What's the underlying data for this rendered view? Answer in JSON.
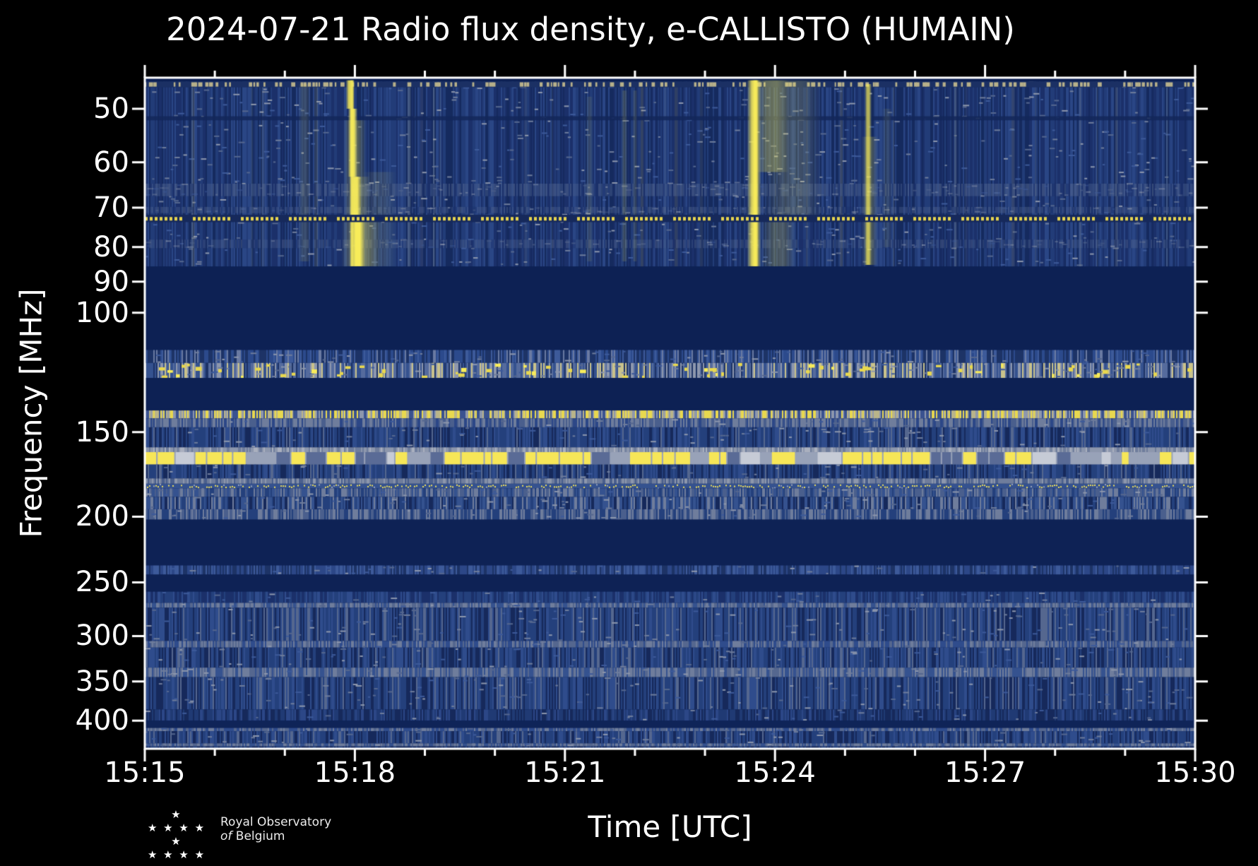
{
  "title": "2024-07-21 Radio flux density, e-CALLISTO (HUMAIN)",
  "logo": {
    "line1": "Royal Observatory",
    "line2_of": "of",
    "line2_rest": "Belgium",
    "stars_top": "★",
    "stars_mid": "★ ★ ★ ★ ★",
    "stars_bottom": "★ ★ ★ ★"
  },
  "chart_data": {
    "type": "heatmap",
    "title": "2024-07-21 Radio flux density, e-CALLISTO (HUMAIN)",
    "xlabel": "Time [UTC]",
    "ylabel": "Frequency [MHz]",
    "x_range_utc": [
      "15:15",
      "15:30"
    ],
    "x_ticks_major": [
      "15:15",
      "15:18",
      "15:21",
      "15:24",
      "15:27",
      "15:30"
    ],
    "x_major_interval_min": 3,
    "x_minor_interval_min": 1,
    "y_scale": "log",
    "y_axis_inverted": true,
    "y_range_mhz": [
      45,
      440
    ],
    "y_ticks_mhz": [
      50,
      60,
      70,
      80,
      90,
      100,
      150,
      200,
      250,
      300,
      350,
      400
    ],
    "grid": false,
    "legend": "none",
    "colors": {
      "figure_background": "#000000",
      "axis": "#ffffff",
      "blank_band": "#0d2154",
      "noise_base": "#1d336b",
      "burst_yellow": "#f8ec5a"
    },
    "rfi_dash_line": {
      "f0": 71.7,
      "f1": 73.5,
      "bg": "#16295b",
      "c": "#e6d44f"
    },
    "bands": [
      {
        "f0": 45.0,
        "f1": 85.5,
        "style": "noise",
        "pal": [
          [
            "#1b306a",
            0.32
          ],
          [
            "#223c78",
            0.28
          ],
          [
            "#152a5e",
            0.22
          ],
          [
            "#2a4685",
            0.18
          ]
        ],
        "hspeck": 0.05,
        "ytint": 0.05
      },
      {
        "f0": 45.0,
        "f1": 45.6,
        "style": "solid",
        "c": "#0d2154"
      },
      {
        "f0": 45.6,
        "f1": 46.5,
        "style": "hdash",
        "bg": "#1b3064",
        "c": "#b7b08a",
        "den": 0.5
      },
      {
        "f0": 51.3,
        "f1": 52.0,
        "style": "solid",
        "c": "#132759",
        "alpha": 0.85
      },
      {
        "f0": 64.5,
        "f1": 67.3,
        "style": "noise",
        "alpha": 0.5,
        "pal": [
          [
            "#44598a",
            0.45
          ],
          [
            "#55678f",
            0.25
          ],
          [
            "#1b306a",
            0.3
          ]
        ],
        "hspeck": 0.1
      },
      {
        "f0": 69.8,
        "f1": 71.3,
        "style": "noise",
        "alpha": 0.45,
        "pal": [
          [
            "#44598a",
            0.5
          ],
          [
            "#55678f",
            0.2
          ],
          [
            "#1b306a",
            0.3
          ]
        ],
        "hspeck": 0.08
      },
      {
        "f0": 78.0,
        "f1": 80.3,
        "style": "noise",
        "alpha": 0.4,
        "pal": [
          [
            "#44598a",
            0.4
          ],
          [
            "#55678f",
            0.25
          ],
          [
            "#1b306a",
            0.35
          ]
        ],
        "hspeck": 0.08
      },
      {
        "f0": 85.5,
        "f1": 113.5,
        "style": "solid",
        "c": "#0d2154"
      },
      {
        "f0": 113.5,
        "f1": 118.6,
        "style": "noise",
        "pal": [
          [
            "#1d3366",
            0.4
          ],
          [
            "#2c4a8c",
            0.28
          ],
          [
            "#3d5a9a",
            0.18
          ],
          [
            "#6a7aa2",
            0.14
          ]
        ],
        "hspeck": 0.06
      },
      {
        "f0": 118.6,
        "f1": 124.8,
        "style": "noise",
        "pal": [
          [
            "#35528f",
            0.28
          ],
          [
            "#556b9d",
            0.22
          ],
          [
            "#8d97ad",
            0.18
          ],
          [
            "#1d3366",
            0.14
          ],
          [
            "#c9c28b",
            0.18
          ]
        ],
        "ydash": 0.16,
        "hspeck": 0.08
      },
      {
        "f0": 124.8,
        "f1": 139.4,
        "style": "solid",
        "c": "#0d2154"
      },
      {
        "f0": 139.4,
        "f1": 143.2,
        "style": "noise",
        "pal": [
          [
            "#3a5290",
            0.26
          ],
          [
            "#8d97ad",
            0.2
          ],
          [
            "#e8d84f",
            0.3
          ],
          [
            "#b9b489",
            0.24
          ]
        ]
      },
      {
        "f0": 143.2,
        "f1": 147.6,
        "style": "noise",
        "pal": [
          [
            "#6f7d9c",
            0.4
          ],
          [
            "#4a5f8d",
            0.33
          ],
          [
            "#2c4787",
            0.27
          ]
        ],
        "hspeck": 0.05
      },
      {
        "f0": 147.6,
        "f1": 158.0,
        "style": "noise",
        "pal": [
          [
            "#24407c",
            0.4
          ],
          [
            "#16295b",
            0.25
          ],
          [
            "#2f4c8c",
            0.25
          ],
          [
            "#55678f",
            0.1
          ]
        ],
        "hspeck": 0.05
      },
      {
        "f0": 158.0,
        "f1": 160.6,
        "style": "noise",
        "pal": [
          [
            "#8d97ad",
            0.5
          ],
          [
            "#6f7d9c",
            0.3
          ],
          [
            "#aab0bf",
            0.2
          ]
        ]
      },
      {
        "f0": 160.6,
        "f1": 167.5,
        "style": "segments",
        "bg": "#98a2b8",
        "c": "#f6e658",
        "cov": 0.5
      },
      {
        "f0": 167.5,
        "f1": 175.6,
        "style": "noise",
        "pal": [
          [
            "#24407c",
            0.38
          ],
          [
            "#16295b",
            0.3
          ],
          [
            "#2f4c8c",
            0.22
          ],
          [
            "#55678f",
            0.1
          ]
        ],
        "hspeck": 0.05
      },
      {
        "f0": 175.6,
        "f1": 178.8,
        "style": "noise",
        "pal": [
          [
            "#6f7d9c",
            0.45
          ],
          [
            "#8d97ad",
            0.25
          ],
          [
            "#4a5f8d",
            0.3
          ]
        ]
      },
      {
        "f0": 178.8,
        "f1": 181.6,
        "style": "dots",
        "bg": "#35528f",
        "c": "#f0e05a",
        "den": 0.5
      },
      {
        "f0": 181.6,
        "f1": 187.0,
        "style": "noise",
        "pal": [
          [
            "#4a5f8d",
            0.3
          ],
          [
            "#6f7d9c",
            0.25
          ],
          [
            "#35528f",
            0.25
          ],
          [
            "#24407c",
            0.2
          ]
        ],
        "hspeck": 0.06
      },
      {
        "f0": 187.0,
        "f1": 195.0,
        "style": "noise",
        "pal": [
          [
            "#35528f",
            0.3
          ],
          [
            "#24407c",
            0.3
          ],
          [
            "#6f7d9c",
            0.2
          ],
          [
            "#16295b",
            0.2
          ]
        ],
        "hspeck": 0.06
      },
      {
        "f0": 195.0,
        "f1": 202.0,
        "style": "noise",
        "pal": [
          [
            "#6f7d9c",
            0.3
          ],
          [
            "#4a5f8d",
            0.3
          ],
          [
            "#24407c",
            0.4
          ]
        ],
        "hspeck": 0.05
      },
      {
        "f0": 202.0,
        "f1": 236.0,
        "style": "solid",
        "c": "#0e2255"
      },
      {
        "f0": 236.0,
        "f1": 243.5,
        "style": "noise",
        "pal": [
          [
            "#2c4787",
            0.42
          ],
          [
            "#3d5a9a",
            0.28
          ],
          [
            "#1d3366",
            0.3
          ]
        ],
        "hspeck": 0.05
      },
      {
        "f0": 243.5,
        "f1": 258.0,
        "style": "solid",
        "c": "#0e2255"
      },
      {
        "f0": 258.0,
        "f1": 268.0,
        "style": "noise",
        "pal": [
          [
            "#24407c",
            0.4
          ],
          [
            "#1b306a",
            0.35
          ],
          [
            "#2f4c8c",
            0.25
          ]
        ],
        "hspeck": 0.04
      },
      {
        "f0": 268.0,
        "f1": 272.5,
        "style": "noise",
        "pal": [
          [
            "#6f7d9c",
            0.35
          ],
          [
            "#55678f",
            0.3
          ],
          [
            "#35528f",
            0.35
          ]
        ],
        "hspeck": 0.05
      },
      {
        "f0": 272.5,
        "f1": 305.0,
        "style": "noise",
        "pal": [
          [
            "#24407c",
            0.34
          ],
          [
            "#16295b",
            0.26
          ],
          [
            "#2f4c8c",
            0.25
          ],
          [
            "#55678f",
            0.15
          ]
        ],
        "hspeck": 0.05
      },
      {
        "f0": 305.0,
        "f1": 312.0,
        "style": "noise",
        "pal": [
          [
            "#55678f",
            0.35
          ],
          [
            "#6f7d9c",
            0.25
          ],
          [
            "#2f4c8c",
            0.4
          ]
        ],
        "hspeck": 0.05
      },
      {
        "f0": 312.0,
        "f1": 334.0,
        "style": "noise",
        "pal": [
          [
            "#24407c",
            0.38
          ],
          [
            "#16295b",
            0.27
          ],
          [
            "#2f4c8c",
            0.25
          ],
          [
            "#55678f",
            0.1
          ]
        ],
        "hspeck": 0.05
      },
      {
        "f0": 334.0,
        "f1": 345.0,
        "style": "noise",
        "pal": [
          [
            "#6f7d9c",
            0.4
          ],
          [
            "#55678f",
            0.25
          ],
          [
            "#35528f",
            0.35
          ]
        ],
        "hspeck": 0.06
      },
      {
        "f0": 345.0,
        "f1": 385.0,
        "style": "noise",
        "pal": [
          [
            "#24407c",
            0.36
          ],
          [
            "#16295b",
            0.28
          ],
          [
            "#2f4c8c",
            0.24
          ],
          [
            "#55678f",
            0.12
          ]
        ],
        "hspeck": 0.05
      },
      {
        "f0": 385.0,
        "f1": 400.0,
        "style": "noise",
        "pal": [
          [
            "#203a74",
            0.4
          ],
          [
            "#16295b",
            0.35
          ],
          [
            "#2c4787",
            0.25
          ]
        ],
        "hspeck": 0.04
      },
      {
        "f0": 400.0,
        "f1": 410.0,
        "style": "solid",
        "c": "#0f2458"
      },
      {
        "f0": 410.0,
        "f1": 414.5,
        "style": "noise",
        "pal": [
          [
            "#55678f",
            0.35
          ],
          [
            "#6f7d9c",
            0.25
          ],
          [
            "#2f4c8c",
            0.4
          ]
        ],
        "hspeck": 0.06
      },
      {
        "f0": 414.5,
        "f1": 432.0,
        "style": "noise",
        "pal": [
          [
            "#24407c",
            0.38
          ],
          [
            "#16295b",
            0.26
          ],
          [
            "#2f4c8c",
            0.26
          ],
          [
            "#55678f",
            0.1
          ]
        ],
        "hspeck": 0.05
      },
      {
        "f0": 432.0,
        "f1": 436.5,
        "style": "noise",
        "pal": [
          [
            "#6f7d9c",
            0.35
          ],
          [
            "#55678f",
            0.3
          ],
          [
            "#35528f",
            0.35
          ]
        ],
        "hspeck": 0.06
      },
      {
        "f0": 436.5,
        "f1": 440.0,
        "style": "noise",
        "pal": [
          [
            "#24407c",
            0.5
          ],
          [
            "#16295b",
            0.5
          ]
        ]
      }
    ],
    "bursts": [
      {
        "t": 2.28,
        "w": 0.18,
        "f0": 46.0,
        "f1": 84.0,
        "a": 0.12
      },
      {
        "t": 2.96,
        "w": 0.07,
        "f0": 45.4,
        "f1": 85.4,
        "a": 0.8
      },
      {
        "t": 2.93,
        "w": 0.12,
        "f0": 45.4,
        "f1": 50.0,
        "a": 0.85
      },
      {
        "t": 2.97,
        "w": 0.14,
        "f0": 50.0,
        "f1": 63.0,
        "a": 0.9
      },
      {
        "t": 3.0,
        "w": 0.32,
        "f0": 52.0,
        "f1": 63.0,
        "a": 0.28
      },
      {
        "t": 3.01,
        "w": 0.17,
        "f0": 63.0,
        "f1": 73.0,
        "a": 0.95
      },
      {
        "t": 3.03,
        "w": 0.38,
        "f0": 63.0,
        "f1": 73.0,
        "a": 0.3
      },
      {
        "t": 3.04,
        "w": 0.22,
        "f0": 73.0,
        "f1": 85.4,
        "a": 1.0
      },
      {
        "t": 3.08,
        "w": 0.55,
        "f0": 73.0,
        "f1": 85.4,
        "a": 0.35
      },
      {
        "t": 3.35,
        "w": 0.5,
        "f0": 62.0,
        "f1": 85.4,
        "a": 0.1
      },
      {
        "t": 6.35,
        "w": 0.1,
        "f0": 48.0,
        "f1": 84.0,
        "a": 0.1
      },
      {
        "t": 6.85,
        "w": 0.09,
        "f0": 47.0,
        "f1": 84.0,
        "a": 0.15
      },
      {
        "t": 7.0,
        "w": 0.07,
        "f0": 47.0,
        "f1": 84.0,
        "a": 0.12
      },
      {
        "t": 8.7,
        "w": 0.2,
        "f0": 45.4,
        "f1": 85.4,
        "a": 0.85
      },
      {
        "t": 8.72,
        "w": 0.09,
        "f0": 45.4,
        "f1": 85.4,
        "a": 0.95
      },
      {
        "t": 8.95,
        "w": 0.5,
        "f0": 45.4,
        "f1": 62.0,
        "a": 0.3
      },
      {
        "t": 9.25,
        "w": 0.85,
        "f0": 45.4,
        "f1": 72.0,
        "a": 0.16
      },
      {
        "t": 9.05,
        "w": 0.5,
        "f0": 72.0,
        "f1": 85.4,
        "a": 0.22
      },
      {
        "t": 10.33,
        "w": 0.1,
        "f0": 46.0,
        "f1": 85.0,
        "a": 0.7
      },
      {
        "t": 10.35,
        "w": 0.24,
        "f0": 55.0,
        "f1": 85.0,
        "a": 0.22
      },
      {
        "t": 10.6,
        "w": 0.14,
        "f0": 50.0,
        "f1": 80.0,
        "a": 0.09
      }
    ]
  }
}
